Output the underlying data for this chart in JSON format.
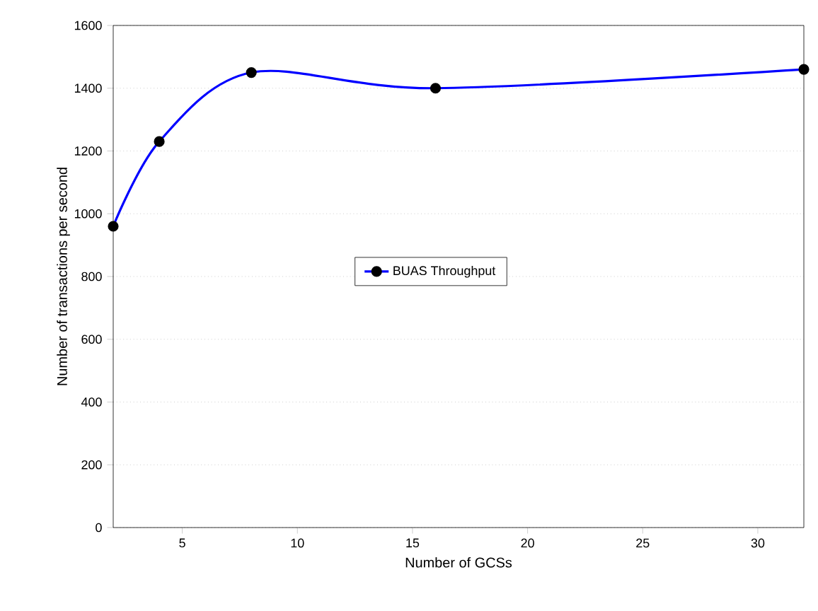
{
  "chart_data": {
    "type": "line",
    "xlabel": "Number of GCSs",
    "ylabel": "Number of transactions per second",
    "x": [
      2,
      4,
      8,
      16,
      32
    ],
    "series": [
      {
        "name": "BUAS Throughput",
        "color": "#0000ff",
        "values": [
          960,
          1230,
          1450,
          1400,
          1460
        ]
      }
    ],
    "xlim": [
      2,
      32
    ],
    "xticks": [
      5,
      10,
      15,
      20,
      25,
      30
    ],
    "ylim": [
      0,
      1600
    ],
    "yticks": [
      0,
      200,
      400,
      600,
      800,
      1000,
      1200,
      1400,
      1600
    ],
    "grid": "y",
    "legend": "center",
    "marker": "circle",
    "line_style": "solid"
  }
}
